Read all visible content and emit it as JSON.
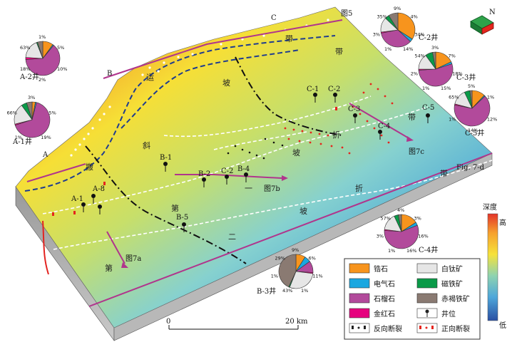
{
  "map": {
    "slope_zone_labels": [
      {
        "text": "运"
      },
      {
        "text": "搬"
      },
      {
        "text": "斜"
      },
      {
        "text": "坡"
      },
      {
        "text": "带"
      },
      {
        "text": "带"
      },
      {
        "text": "第"
      },
      {
        "text": "二"
      },
      {
        "text": "坡"
      },
      {
        "text": "折"
      },
      {
        "text": "带"
      },
      {
        "text": "第"
      },
      {
        "text": "一"
      },
      {
        "text": "坡"
      },
      {
        "text": "折"
      },
      {
        "text": "带"
      }
    ],
    "section_letters": [
      "A",
      "B",
      "C"
    ],
    "figure_refs": [
      "图5",
      "图7a",
      "图7b",
      "图7c",
      "Fig. 7-d"
    ],
    "wells": [
      "A-1",
      "A-2",
      "B-1",
      "B-2",
      "B-3",
      "B-4",
      "B-5",
      "C-1",
      "C-2",
      "C-3",
      "C-4",
      "C-5"
    ],
    "pie_titles": {
      "A2": "A-2井",
      "A1": "A-1井",
      "C2": "C-2井",
      "C3": "C-3井",
      "C5": "C-5井",
      "C4": "C-4井",
      "B3": "B-3井"
    },
    "pie_labels": {
      "A2": [
        "1%",
        "5%",
        "10%",
        "2%",
        "18%",
        "63%"
      ],
      "A1": [
        "3%",
        "5%",
        "19%",
        "1%",
        "66%"
      ],
      "C2": [
        "9%",
        "4%",
        "34%",
        "14%",
        "1%",
        "3%",
        "35%"
      ],
      "C3": [
        "3%",
        "7%",
        "18%",
        "15%",
        "1%",
        "2%",
        "54%"
      ],
      "C5": [
        "5%",
        "1%",
        "12%",
        "14%",
        "1%",
        "65%"
      ],
      "C4": [
        "4%",
        "3%",
        "16%",
        "16%",
        "1%",
        "3%",
        "57%"
      ],
      "B3": [
        "9%",
        "6%",
        "11%",
        "1%",
        "43%",
        "1%",
        "29%"
      ]
    },
    "scale_bar": {
      "start": "0",
      "end": "20 km"
    },
    "depth_bar": {
      "title": "深度",
      "high": "高",
      "low": "低"
    },
    "north": "N"
  },
  "legend": {
    "items": [
      {
        "label": "锆石",
        "color": "#f7941d"
      },
      {
        "label": "白钛矿",
        "color": "#e6e6e6"
      },
      {
        "label": "电气石",
        "color": "#1aa7e0"
      },
      {
        "label": "磁铁矿",
        "color": "#0a9a48"
      },
      {
        "label": "石榴石",
        "color": "#b24a9b"
      },
      {
        "label": "赤褐铁矿",
        "color": "#8a7a72"
      },
      {
        "label": "金红石",
        "color": "#e6007e"
      },
      {
        "label": "井位",
        "color": "#222222"
      },
      {
        "label": "反向断裂",
        "color": "#222222"
      },
      {
        "label": "正向断裂",
        "color": "#e5251d"
      }
    ]
  },
  "colors": {
    "shallow": "#e32320",
    "mid": "#f2e33a",
    "deep": "#3b8fc7",
    "outline": "#333333"
  }
}
